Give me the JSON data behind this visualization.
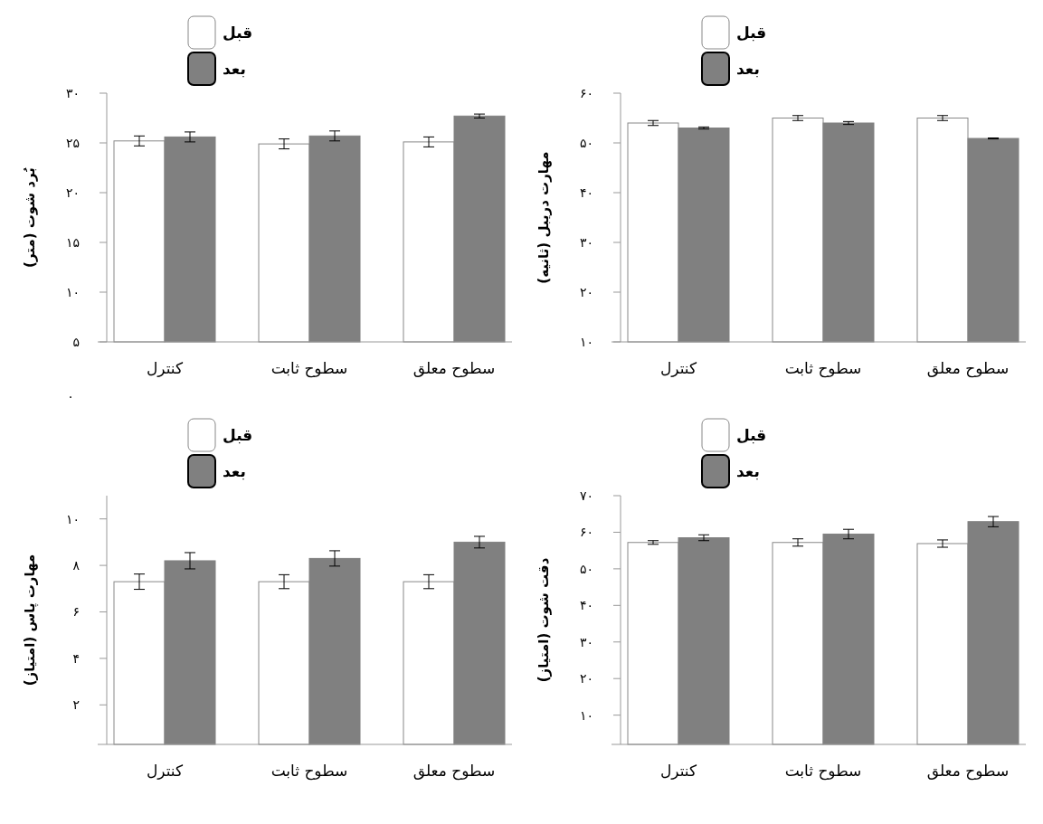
{
  "chart_data": [
    {
      "type": "bar",
      "ylabel": "بُرد شوت (متر)",
      "categories": [
        "کنترل",
        "سطوح ثابت",
        "سطوح معلق"
      ],
      "legend": "top left",
      "grid": false,
      "ylim": [
        5,
        30
      ],
      "yticks": [
        {
          "value": 5,
          "label": "۵"
        },
        {
          "value": 10,
          "label": "۱۰"
        },
        {
          "value": 15,
          "label": "۱۵"
        },
        {
          "value": 20,
          "label": "۲۰"
        },
        {
          "value": 25,
          "label": "۲۵"
        },
        {
          "value": 30,
          "label": "۳۰"
        }
      ],
      "annotations": [
        "۰"
      ],
      "series": [
        {
          "name": "قبل",
          "color": "#ffffff",
          "values": [
            25.2,
            24.9,
            25.1
          ],
          "errors": [
            0.5,
            0.5,
            0.5
          ]
        },
        {
          "name": "بعد",
          "color": "#808080",
          "values": [
            25.6,
            25.7,
            27.7
          ],
          "errors": [
            0.5,
            0.5,
            0.2
          ]
        }
      ]
    },
    {
      "type": "bar",
      "ylabel": "مهارت دریبل (ثانیه)",
      "categories": [
        "کنترل",
        "سطوح ثابت",
        "سطوح معلق"
      ],
      "legend": "top left",
      "grid": false,
      "ylim": [
        10,
        60
      ],
      "yticks": [
        {
          "value": 10,
          "label": "۱۰"
        },
        {
          "value": 20,
          "label": "۲۰"
        },
        {
          "value": 30,
          "label": "۳۰"
        },
        {
          "value": 40,
          "label": "۴۰"
        },
        {
          "value": 50,
          "label": "۵۰"
        },
        {
          "value": 60,
          "label": "۶۰"
        }
      ],
      "series": [
        {
          "name": "قبل",
          "color": "#ffffff",
          "values": [
            54.0,
            55.0,
            55.0
          ],
          "errors": [
            0.5,
            0.5,
            0.5
          ]
        },
        {
          "name": "بعد",
          "color": "#808080",
          "values": [
            53.0,
            54.0,
            50.9
          ],
          "errors": [
            0.2,
            0.3,
            0.1
          ]
        }
      ]
    },
    {
      "type": "bar",
      "ylabel": "مهارت پاس (امتیاز)",
      "categories": [
        "کنترل",
        "سطوح ثابت",
        "سطوح معلق"
      ],
      "legend": "top left",
      "grid": false,
      "ylim": [
        0.3,
        11
      ],
      "yticks": [
        {
          "value": 2,
          "label": "۲"
        },
        {
          "value": 4,
          "label": "۴"
        },
        {
          "value": 6,
          "label": "۶"
        },
        {
          "value": 8,
          "label": "۸"
        },
        {
          "value": 10,
          "label": "۱۰"
        }
      ],
      "series": [
        {
          "name": "قبل",
          "color": "#ffffff",
          "values": [
            7.3,
            7.3,
            7.3
          ],
          "errors": [
            0.33,
            0.3,
            0.3
          ]
        },
        {
          "name": "بعد",
          "color": "#808080",
          "values": [
            8.2,
            8.3,
            9.0
          ],
          "errors": [
            0.35,
            0.33,
            0.25
          ]
        }
      ]
    },
    {
      "type": "bar",
      "ylabel": "دقت شوت (امتیاز)",
      "categories": [
        "کنترل",
        "سطوح ثابت",
        "سطوح معلق"
      ],
      "legend": "top left",
      "grid": false,
      "ylim": [
        2,
        70
      ],
      "yticks": [
        {
          "value": 10,
          "label": "۱۰"
        },
        {
          "value": 20,
          "label": "۲۰"
        },
        {
          "value": 30,
          "label": "۳۰"
        },
        {
          "value": 40,
          "label": "۴۰"
        },
        {
          "value": 50,
          "label": "۵۰"
        },
        {
          "value": 60,
          "label": "۶۰"
        },
        {
          "value": 70,
          "label": "۷۰"
        }
      ],
      "series": [
        {
          "name": "قبل",
          "color": "#ffffff",
          "values": [
            57.2,
            57.2,
            56.9
          ],
          "errors": [
            0.5,
            1.0,
            1.0
          ]
        },
        {
          "name": "بعد",
          "color": "#808080",
          "values": [
            58.5,
            59.5,
            62.9
          ],
          "errors": [
            0.8,
            1.3,
            1.4
          ]
        }
      ]
    }
  ]
}
